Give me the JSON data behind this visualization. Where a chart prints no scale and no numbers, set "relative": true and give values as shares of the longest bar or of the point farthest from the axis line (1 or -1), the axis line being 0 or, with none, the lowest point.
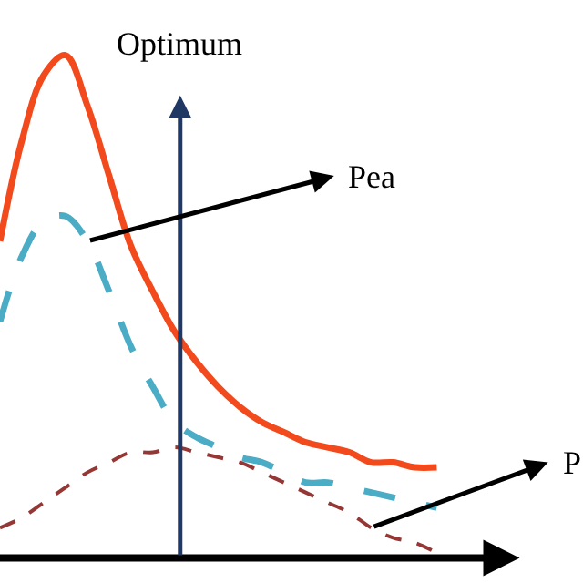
{
  "chart_data": {
    "type": "line",
    "relative": true,
    "categories": [
      null,
      null,
      null,
      null,
      null,
      null,
      null,
      null,
      null,
      null,
      null,
      null,
      null,
      null,
      null,
      null,
      null,
      null,
      null,
      null,
      null
    ],
    "series": [
      {
        "color": "#f24a1c",
        "line_style": "solid",
        "values": [
          0.63,
          0.83,
          0.96,
          1.0,
          0.9,
          0.76,
          0.62,
          0.53,
          0.45,
          0.39,
          0.34,
          0.3,
          0.27,
          0.25,
          0.23,
          0.22,
          0.21,
          0.19,
          0.19,
          0.18,
          0.18
        ]
      },
      {
        "color": "#4bacc6",
        "line_style": "dashed",
        "values": [
          0.47,
          0.6,
          0.67,
          0.68,
          0.63,
          0.53,
          0.42,
          0.34,
          0.27,
          0.24,
          0.22,
          0.2,
          0.19,
          0.17,
          0.15,
          0.15,
          0.14,
          0.13,
          0.12,
          0.11,
          0.1
        ]
      },
      {
        "color": "#953735",
        "line_style": "dotted",
        "values": [
          0.06,
          0.08,
          0.11,
          0.14,
          0.17,
          0.19,
          0.21,
          0.21,
          0.22,
          0.21,
          0.2,
          0.19,
          0.17,
          0.15,
          0.13,
          0.11,
          0.09,
          0.06,
          0.04,
          0.03,
          0.01
        ]
      }
    ],
    "annotations": [
      "Optimum",
      "Pea",
      "P"
    ],
    "marker": "none"
  }
}
